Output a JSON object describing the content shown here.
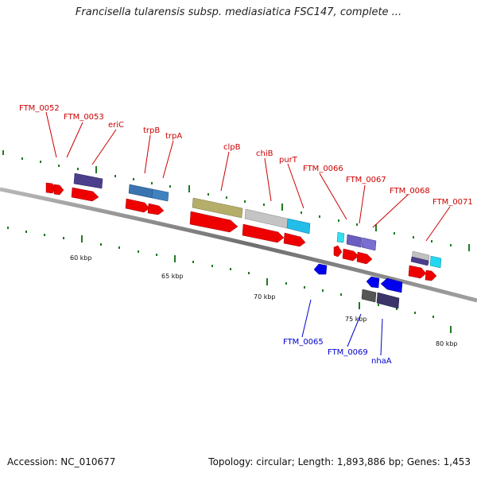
{
  "title": "Francisella tularensis subsp. mediasiatica FSC147, complete ...",
  "footer": {
    "accession_label": "Accession:",
    "accession": "NC_010677",
    "topology_label": "Topology:",
    "topology": "circular",
    "length_label": "Length:",
    "length": "1,893,886 bp",
    "genes_label": "Genes:",
    "genes": "1,453"
  },
  "colors": {
    "backbone": "#8a8a8a",
    "tick": "#1f7a1f",
    "label_forward": "#cc0000",
    "label_reverse": "#0000cc",
    "cds": "#ee0000",
    "reverse_cds": "#0000ee"
  },
  "scale_labels": [
    "60 kbp",
    "65 kbp",
    "70 kbp",
    "75 kbp",
    "80 kbp"
  ],
  "gene_labels_forward": [
    "FTM_0052",
    "FTM_0053",
    "eriC",
    "trpB",
    "trpA",
    "clpB",
    "chiB",
    "purT",
    "FTM_0066",
    "FTM_0067",
    "FTM_0068",
    "FTM_0071"
  ],
  "gene_labels_reverse": [
    "FTM_0065",
    "FTM_0069",
    "nhaA"
  ]
}
